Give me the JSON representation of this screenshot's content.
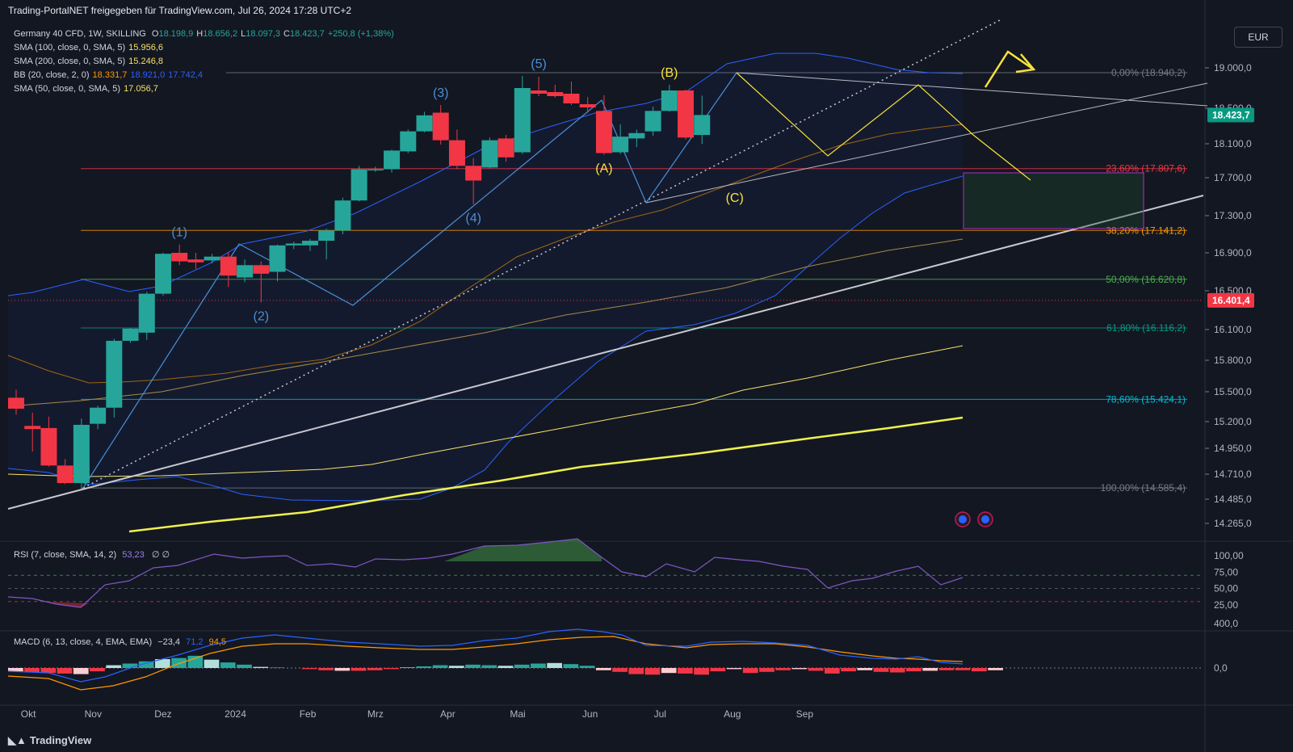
{
  "header": {
    "publisher_line": "Trading-PortalNET freigegeben für TradingView.com, Jul 26, 2024 17:28 UTC+2"
  },
  "legend": {
    "symbol": "Germany 40 CFD, 1W, SKILLING",
    "ohlc": [
      {
        "k": "O",
        "v": "18.198,9"
      },
      {
        "k": "H",
        "v": "18.656,2"
      },
      {
        "k": "L",
        "v": "18.097,3"
      },
      {
        "k": "C",
        "v": "18.423,7"
      },
      {
        "k": "",
        "v": "+250,8 (+1,38%)"
      }
    ],
    "indicators": [
      {
        "label": "SMA (100, close, 0, SMA, 5)",
        "values": [
          "15.956,6"
        ],
        "colors": [
          "#f5e26b"
        ]
      },
      {
        "label": "SMA (200, close, 0, SMA, 5)",
        "values": [
          "15.246,8"
        ],
        "colors": [
          "#f5e26b"
        ]
      },
      {
        "label": "BB (20, close, 2, 0)",
        "values": [
          "18.331,7",
          "18.921,0",
          "17.742,4"
        ],
        "colors": [
          "#ff9800",
          "#2962ff",
          "#2962ff"
        ]
      },
      {
        "label": "SMA (50, close, 0, SMA, 5)",
        "values": [
          "17.056,7"
        ],
        "colors": [
          "#f5e26b"
        ]
      }
    ]
  },
  "currency_button": "EUR",
  "price_badges": {
    "last": "18.423,7",
    "ref": "16.401,4"
  },
  "rsi_legend": {
    "label": "RSI (7, close, SMA, 14, 2)",
    "value": "53,23",
    "extra": "∅  ∅"
  },
  "macd_legend": {
    "label": "MACD (6, 13, close, 4, EMA, EMA)",
    "values": [
      "−23,4",
      "71,2",
      "94,5"
    ]
  },
  "footer": {
    "brand": "TradingView"
  },
  "colors": {
    "background": "#131722",
    "up": "#26a69a",
    "down": "#f23645",
    "bb": "#2962ff",
    "sma_yellow": "#f5e26b",
    "wave_blue": "#4a8fd8",
    "wave_yellow": "#f7e23c",
    "fib_box": "#b02fc4"
  },
  "chart_data": {
    "type": "candlestick",
    "title": "Germany 40 CFD, 1W, SKILLING",
    "x_labels": [
      "Okt",
      "Nov",
      "Dez",
      "2024",
      "Feb",
      "Mrz",
      "Apr",
      "Mai",
      "Jun",
      "Jul",
      "Aug",
      "Sep"
    ],
    "y_ticks": [
      "19.000,0",
      "18.500,0",
      "18.100,0",
      "17.700,0",
      "17.300,0",
      "16.900,0",
      "16.500,0",
      "16.100,0",
      "15.800,0",
      "15.500,0",
      "15.200,0",
      "14.950,0",
      "14.710,0",
      "14.485,0",
      "14.265,0"
    ],
    "y_tick_values": [
      19000,
      18500,
      18100,
      17700,
      17300,
      16900,
      16500,
      16100,
      15800,
      15500,
      15200,
      14950,
      14710,
      14485,
      14265
    ],
    "candles": [
      {
        "date": "2023-09-29",
        "o": 15440,
        "h": 15520,
        "l": 15270,
        "c": 15330
      },
      {
        "date": "2023-10-06",
        "o": 15160,
        "h": 15290,
        "l": 14920,
        "c": 15130
      },
      {
        "date": "2023-10-13",
        "o": 15140,
        "h": 15250,
        "l": 14780,
        "c": 14790
      },
      {
        "date": "2023-10-20",
        "o": 14790,
        "h": 14850,
        "l": 14620,
        "c": 14630
      },
      {
        "date": "2023-10-27",
        "o": 14630,
        "h": 15230,
        "l": 14580,
        "c": 15170
      },
      {
        "date": "2023-11-03",
        "o": 15180,
        "h": 15360,
        "l": 15130,
        "c": 15340
      },
      {
        "date": "2023-11-10",
        "o": 15340,
        "h": 16010,
        "l": 15240,
        "c": 15990
      },
      {
        "date": "2023-11-17",
        "o": 15990,
        "h": 16120,
        "l": 15970,
        "c": 16110
      },
      {
        "date": "2023-11-24",
        "o": 16070,
        "h": 16490,
        "l": 16000,
        "c": 16470
      },
      {
        "date": "2023-12-01",
        "o": 16470,
        "h": 16900,
        "l": 16450,
        "c": 16890
      },
      {
        "date": "2023-12-08",
        "o": 16900,
        "h": 16990,
        "l": 16770,
        "c": 16810
      },
      {
        "date": "2023-12-15",
        "o": 16830,
        "h": 16900,
        "l": 16730,
        "c": 16800
      },
      {
        "date": "2023-12-22",
        "o": 16820,
        "h": 16890,
        "l": 16790,
        "c": 16860
      },
      {
        "date": "2023-12-29",
        "o": 16860,
        "h": 16910,
        "l": 16540,
        "c": 16660
      },
      {
        "date": "2024-01-05",
        "o": 16640,
        "h": 16830,
        "l": 16590,
        "c": 16770
      },
      {
        "date": "2024-01-12",
        "o": 16770,
        "h": 16810,
        "l": 16380,
        "c": 16680
      },
      {
        "date": "2024-01-19",
        "o": 16700,
        "h": 16990,
        "l": 16600,
        "c": 16980
      },
      {
        "date": "2024-01-26",
        "o": 16980,
        "h": 17020,
        "l": 16940,
        "c": 17000
      },
      {
        "date": "2024-02-02",
        "o": 16980,
        "h": 17050,
        "l": 16920,
        "c": 17030
      },
      {
        "date": "2024-02-09",
        "o": 17030,
        "h": 17160,
        "l": 16830,
        "c": 17140
      },
      {
        "date": "2024-02-16",
        "o": 17140,
        "h": 17490,
        "l": 17100,
        "c": 17460
      },
      {
        "date": "2024-02-23",
        "o": 17460,
        "h": 17840,
        "l": 17450,
        "c": 17800
      },
      {
        "date": "2024-03-01",
        "o": 17790,
        "h": 17830,
        "l": 17770,
        "c": 17800
      },
      {
        "date": "2024-03-08",
        "o": 17800,
        "h": 18030,
        "l": 17760,
        "c": 18020
      },
      {
        "date": "2024-03-15",
        "o": 18010,
        "h": 18260,
        "l": 17990,
        "c": 18240
      },
      {
        "date": "2024-03-22",
        "o": 18240,
        "h": 18460,
        "l": 18230,
        "c": 18420
      },
      {
        "date": "2024-03-29",
        "o": 18450,
        "h": 18540,
        "l": 18090,
        "c": 18140
      },
      {
        "date": "2024-04-05",
        "o": 18140,
        "h": 18260,
        "l": 17800,
        "c": 17840
      },
      {
        "date": "2024-04-12",
        "o": 17840,
        "h": 17930,
        "l": 17420,
        "c": 17670
      },
      {
        "date": "2024-04-19",
        "o": 17820,
        "h": 18170,
        "l": 17810,
        "c": 18140
      },
      {
        "date": "2024-04-26",
        "o": 18160,
        "h": 18200,
        "l": 17890,
        "c": 17940
      },
      {
        "date": "2024-05-03",
        "o": 18000,
        "h": 18900,
        "l": 17980,
        "c": 18750
      },
      {
        "date": "2024-05-10",
        "o": 18720,
        "h": 18890,
        "l": 18650,
        "c": 18680
      },
      {
        "date": "2024-05-17",
        "o": 18700,
        "h": 18790,
        "l": 18630,
        "c": 18650
      },
      {
        "date": "2024-05-24",
        "o": 18680,
        "h": 18830,
        "l": 18540,
        "c": 18560
      },
      {
        "date": "2024-05-31",
        "o": 18550,
        "h": 18640,
        "l": 18450,
        "c": 18510
      },
      {
        "date": "2024-06-07",
        "o": 18470,
        "h": 18660,
        "l": 17970,
        "c": 17990
      },
      {
        "date": "2024-06-14",
        "o": 18000,
        "h": 18320,
        "l": 17980,
        "c": 18180
      },
      {
        "date": "2024-06-21",
        "o": 18160,
        "h": 18260,
        "l": 18060,
        "c": 18220
      },
      {
        "date": "2024-06-28",
        "o": 18240,
        "h": 18520,
        "l": 18190,
        "c": 18470
      },
      {
        "date": "2024-07-05",
        "o": 18470,
        "h": 18790,
        "l": 18460,
        "c": 18720
      },
      {
        "date": "2024-07-12",
        "o": 18720,
        "h": 18730,
        "l": 18150,
        "c": 18170
      },
      {
        "date": "2024-07-19",
        "o": 18198.9,
        "h": 18656.2,
        "l": 18097.3,
        "c": 18423.7
      }
    ],
    "fibonacci": [
      {
        "label": "0,00% (18.940,2)",
        "value": 18940.2
      },
      {
        "label": "23,60% (17.807,6)",
        "value": 17807.6
      },
      {
        "label": "38,20% (17.141,2)",
        "value": 17141.2
      },
      {
        "label": "50,00% (16.620,8)",
        "value": 16620.8
      },
      {
        "label": "61,80% (16.116,2)",
        "value": 16116.2
      },
      {
        "label": "78,60% (15.424,1)",
        "value": 15424.1
      },
      {
        "label": "100,00% (14.585,4)",
        "value": 14585.4
      }
    ],
    "wave_labels": [
      {
        "text": "(1)",
        "date": "2023-12-08",
        "price": 16990,
        "color": "blue",
        "pos": "above"
      },
      {
        "text": "(2)",
        "date": "2024-01-12",
        "price": 16380,
        "color": "blue",
        "pos": "below"
      },
      {
        "text": "(3)",
        "date": "2024-03-29",
        "price": 18540,
        "color": "blue",
        "pos": "above"
      },
      {
        "text": "(4)",
        "date": "2024-04-12",
        "price": 17420,
        "color": "blue",
        "pos": "below"
      },
      {
        "text": "(5)",
        "date": "2024-05-10",
        "price": 18900,
        "color": "blue",
        "pos": "above"
      },
      {
        "text": "(A)",
        "date": "2024-06-07",
        "price": 17970,
        "color": "yellow",
        "pos": "below"
      },
      {
        "text": "(B)",
        "date": "2024-07-05",
        "price": 18790,
        "color": "yellow",
        "pos": "above"
      },
      {
        "text": "(C)",
        "date": "2024-08-02",
        "price": 17480,
        "color": "yellow",
        "pos": "inline"
      }
    ],
    "rsi": {
      "y_ticks": [
        "100,00",
        "75,00",
        "50,00",
        "25,00"
      ],
      "y_tick_values": [
        100,
        75,
        50,
        25
      ]
    },
    "macd": {
      "y_ticks": [
        "400,0",
        "0,0"
      ],
      "y_tick_values": [
        400,
        0
      ]
    }
  }
}
